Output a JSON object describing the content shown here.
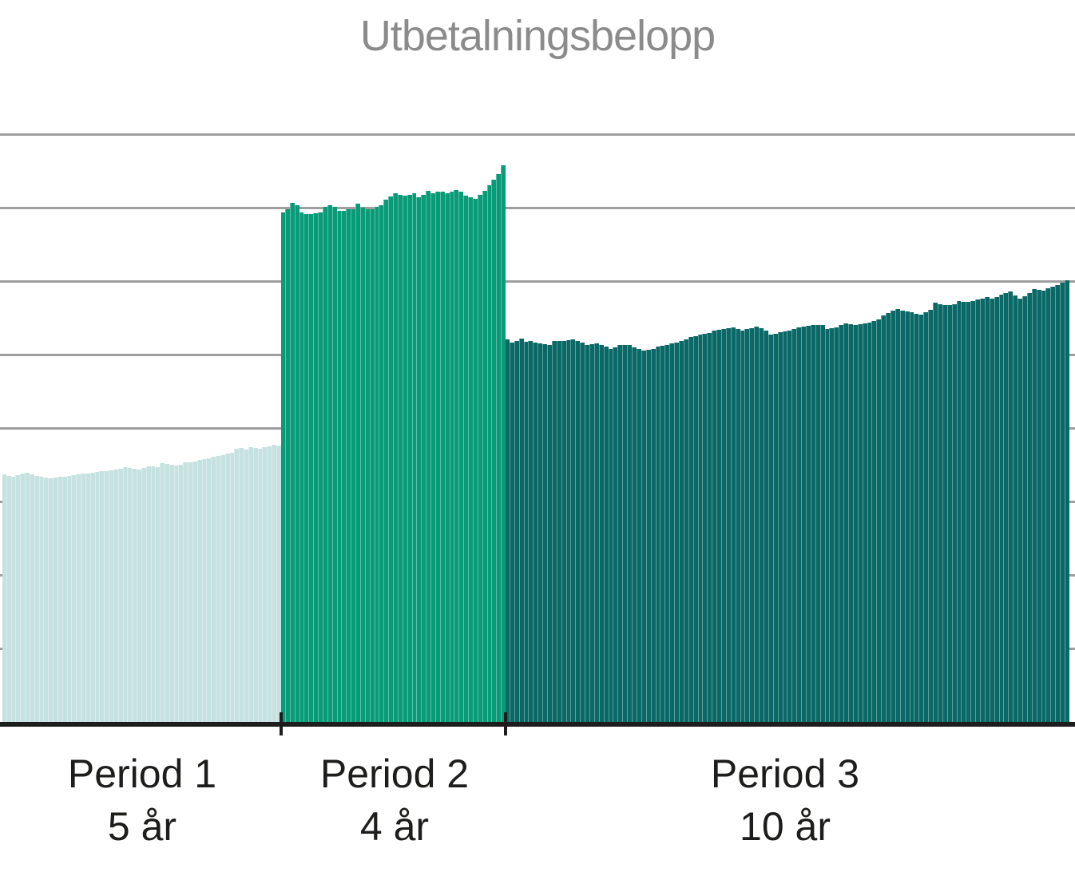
{
  "chart_title": "Utbetalningsbelopp",
  "colors": {
    "background": "#ffffff",
    "gridline": "#9e9e9e",
    "axis": "#1d1d1d",
    "title_text": "#8b8b8b",
    "label_text": "#1d1d1b",
    "period1_bar": "#c6e2e0",
    "period2_bar": "#089b78",
    "period3_bar": "#0a6967"
  },
  "chart_data": {
    "type": "bar",
    "title": "Utbetalningsbelopp",
    "xlabel": "",
    "ylabel": "",
    "legend": "none",
    "grid": "horizontal",
    "value_axis": {
      "tick_labels_visible": false,
      "unit_gridlines": [
        1,
        2,
        3,
        4,
        5,
        6,
        7,
        8
      ],
      "max": 8
    },
    "series": [
      {
        "name": "Period 1",
        "duration_label": "5 år",
        "color": "#c6e2e0",
        "bars": 60,
        "values": [
          3.39,
          3.37,
          3.36,
          3.38,
          3.4,
          3.41,
          3.39,
          3.37,
          3.36,
          3.35,
          3.34,
          3.35,
          3.36,
          3.36,
          3.37,
          3.38,
          3.39,
          3.4,
          3.4,
          3.41,
          3.42,
          3.43,
          3.44,
          3.45,
          3.46,
          3.47,
          3.49,
          3.48,
          3.47,
          3.46,
          3.48,
          3.5,
          3.5,
          3.49,
          3.54,
          3.53,
          3.52,
          3.51,
          3.52,
          3.55,
          3.56,
          3.57,
          3.59,
          3.6,
          3.61,
          3.63,
          3.64,
          3.65,
          3.67,
          3.69,
          3.74,
          3.75,
          3.73,
          3.76,
          3.75,
          3.74,
          3.76,
          3.77,
          3.79,
          3.78
        ]
      },
      {
        "name": "Period 2",
        "duration_label": "4 år",
        "color": "#089b78",
        "bars": 48,
        "values": [
          6.96,
          7.0,
          7.09,
          7.05,
          6.96,
          6.93,
          6.93,
          6.95,
          6.96,
          7.03,
          7.05,
          7.03,
          6.98,
          6.98,
          7.0,
          7.0,
          7.08,
          7.02,
          7.0,
          7.0,
          7.03,
          7.05,
          7.13,
          7.17,
          7.22,
          7.2,
          7.18,
          7.2,
          7.22,
          7.16,
          7.2,
          7.25,
          7.22,
          7.24,
          7.24,
          7.22,
          7.24,
          7.26,
          7.24,
          7.18,
          7.16,
          7.14,
          7.2,
          7.25,
          7.33,
          7.4,
          7.48,
          7.6
        ]
      },
      {
        "name": "Period 3",
        "duration_label": "10 år",
        "color": "#0a6967",
        "bars": 120,
        "values": [
          5.23,
          5.18,
          5.21,
          5.24,
          5.2,
          5.21,
          5.19,
          5.17,
          5.16,
          5.15,
          5.21,
          5.21,
          5.21,
          5.22,
          5.23,
          5.21,
          5.18,
          5.15,
          5.16,
          5.17,
          5.15,
          5.13,
          5.1,
          5.12,
          5.15,
          5.15,
          5.15,
          5.12,
          5.1,
          5.08,
          5.09,
          5.1,
          5.13,
          5.14,
          5.15,
          5.17,
          5.19,
          5.21,
          5.23,
          5.26,
          5.27,
          5.29,
          5.31,
          5.32,
          5.35,
          5.36,
          5.37,
          5.38,
          5.39,
          5.37,
          5.35,
          5.37,
          5.38,
          5.4,
          5.38,
          5.35,
          5.29,
          5.31,
          5.33,
          5.34,
          5.35,
          5.37,
          5.39,
          5.4,
          5.41,
          5.42,
          5.42,
          5.42,
          5.37,
          5.38,
          5.39,
          5.42,
          5.45,
          5.43,
          5.42,
          5.44,
          5.45,
          5.46,
          5.48,
          5.5,
          5.55,
          5.59,
          5.62,
          5.64,
          5.62,
          5.61,
          5.6,
          5.58,
          5.57,
          5.6,
          5.63,
          5.73,
          5.71,
          5.7,
          5.7,
          5.71,
          5.75,
          5.74,
          5.74,
          5.75,
          5.77,
          5.78,
          5.8,
          5.78,
          5.81,
          5.84,
          5.86,
          5.88,
          5.83,
          5.78,
          5.82,
          5.86,
          5.91,
          5.9,
          5.89,
          5.92,
          5.95,
          5.97,
          6.0,
          6.03
        ]
      }
    ]
  },
  "x_axis_labels": [
    {
      "line1": "Period 1",
      "line2": "5 år"
    },
    {
      "line1": "Period 2",
      "line2": "4 år"
    },
    {
      "line1": "Period 3",
      "line2": "10 år"
    }
  ]
}
